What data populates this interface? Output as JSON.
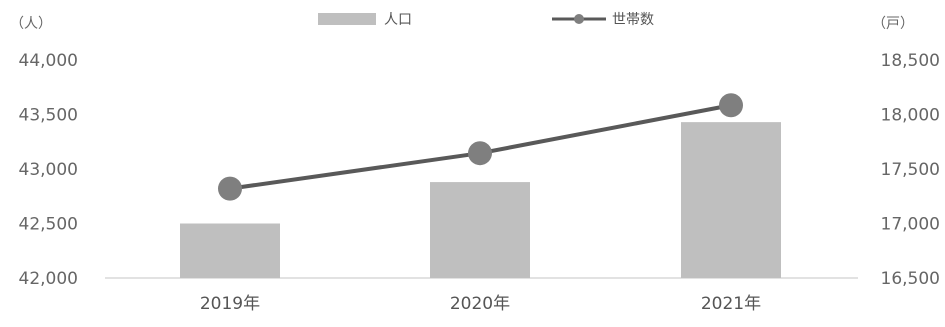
{
  "chart_data": {
    "type": "bar+line",
    "categories": [
      "2019年",
      "2020年",
      "2021年"
    ],
    "series": [
      {
        "name": "人口",
        "type": "bar",
        "axis": "left",
        "values": [
          42500,
          42880,
          43430
        ],
        "color": "#bfbfbf"
      },
      {
        "name": "世帯数",
        "type": "line",
        "axis": "right",
        "values": [
          17320,
          17645,
          18085
        ],
        "color": "#595959",
        "marker_color": "#7f7f7f"
      }
    ],
    "left_axis": {
      "unit": "（人）",
      "ylim": [
        42000,
        44000
      ],
      "ticks": [
        "44,000",
        "43,500",
        "43,000",
        "42,500",
        "42,000"
      ]
    },
    "right_axis": {
      "unit": "（戸）",
      "ylim": [
        16500,
        18500
      ],
      "ticks": [
        "18,500",
        "18,000",
        "17,500",
        "17,000",
        "16,500"
      ]
    },
    "legend_position": "top-center",
    "grid": false
  }
}
